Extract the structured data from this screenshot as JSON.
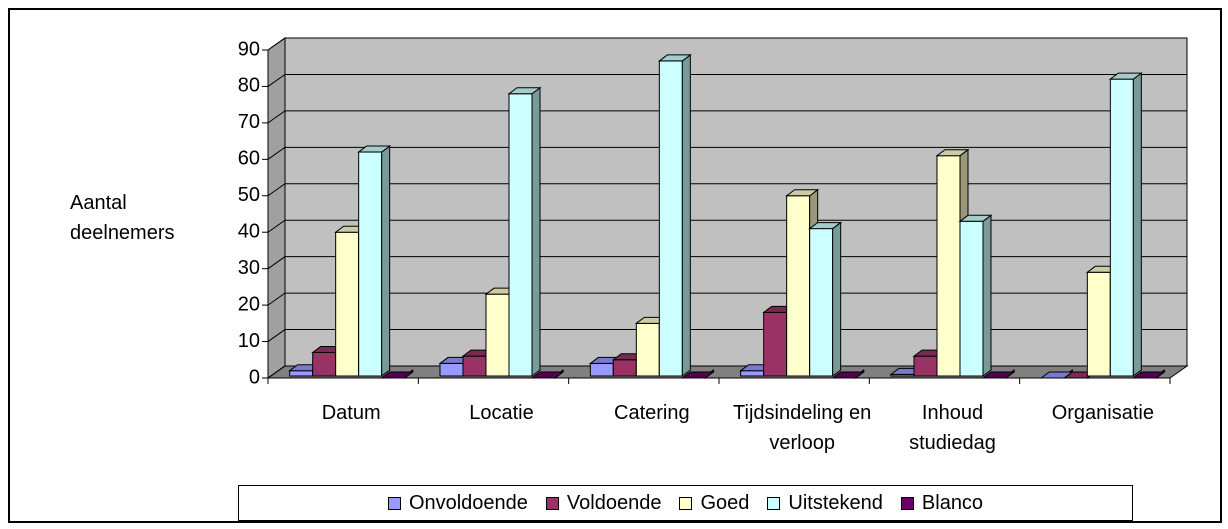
{
  "chart_data": {
    "type": "bar3d",
    "y_axis_label": "Aantal deelnemers",
    "categories": [
      "Datum",
      "Locatie",
      "Catering",
      "Tijdsindeling en verloop",
      "Inhoud studiedag",
      "Organisatie"
    ],
    "series": [
      {
        "name": "Onvoldoende",
        "color": "#9999ff",
        "values": [
          2,
          4,
          4,
          2,
          1,
          0
        ]
      },
      {
        "name": "Voldoende",
        "color": "#993366",
        "values": [
          7,
          6,
          5,
          18,
          6,
          0
        ]
      },
      {
        "name": "Goed",
        "color": "#ffffcc",
        "values": [
          40,
          23,
          15,
          50,
          61,
          29
        ]
      },
      {
        "name": "Uitstekend",
        "color": "#ccffff",
        "values": [
          62,
          78,
          87,
          41,
          43,
          82
        ]
      },
      {
        "name": "Blanco",
        "color": "#660066",
        "values": [
          0,
          0,
          0,
          0,
          0,
          0
        ]
      }
    ],
    "ylim": [
      0,
      90
    ],
    "yticks": [
      0,
      10,
      20,
      30,
      40,
      50,
      60,
      70,
      80,
      90
    ],
    "grid": true,
    "legend": "bottom"
  }
}
